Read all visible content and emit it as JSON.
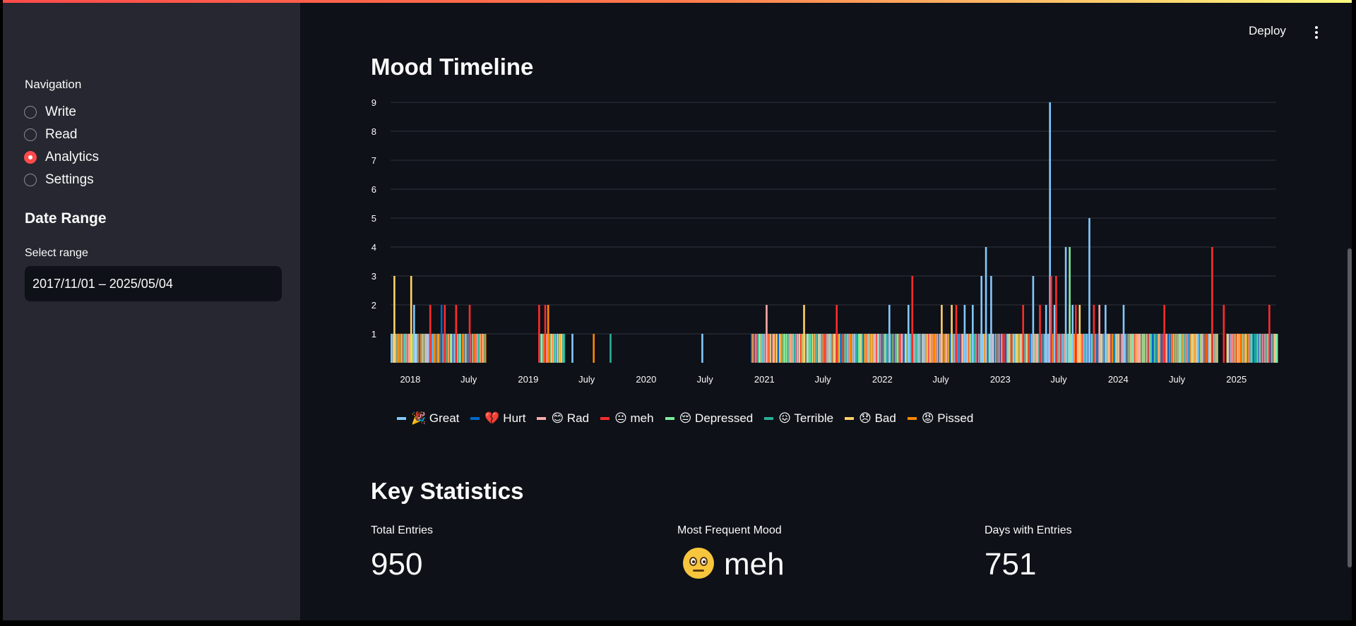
{
  "sidebar": {
    "nav_label": "Navigation",
    "nav_items": [
      {
        "label": "Write",
        "selected": false
      },
      {
        "label": "Read",
        "selected": false
      },
      {
        "label": "Analytics",
        "selected": true
      },
      {
        "label": "Settings",
        "selected": false
      }
    ],
    "date_heading": "Date Range",
    "select_label": "Select range",
    "date_value": "2017/11/01 – 2025/05/04"
  },
  "header": {
    "deploy_label": "Deploy",
    "menu_icon": "kebab-menu-icon"
  },
  "main": {
    "timeline_title": "Mood Timeline",
    "stats_title": "Key Statistics",
    "stats": [
      {
        "label": "Total Entries",
        "value": "950"
      },
      {
        "label": "Most Frequent Mood",
        "value": "meh",
        "emoji": "neutral-face-icon"
      },
      {
        "label": "Days with Entries",
        "value": "751"
      }
    ]
  },
  "chart_data": {
    "type": "bar",
    "title": "",
    "xlabel": "",
    "ylabel": "",
    "ylim": [
      0,
      9
    ],
    "yticks": [
      1,
      2,
      3,
      4,
      5,
      6,
      7,
      8,
      9
    ],
    "grid": true,
    "xlim": [
      "2017-11-01",
      "2025-05-04"
    ],
    "xtick_labels": [
      {
        "date": "2018-01-01",
        "label": "2018"
      },
      {
        "date": "2018-07-01",
        "label": "July"
      },
      {
        "date": "2019-01-01",
        "label": "2019"
      },
      {
        "date": "2019-07-01",
        "label": "July"
      },
      {
        "date": "2020-01-01",
        "label": "2020"
      },
      {
        "date": "2020-07-01",
        "label": "July"
      },
      {
        "date": "2021-01-01",
        "label": "2021"
      },
      {
        "date": "2021-07-01",
        "label": "July"
      },
      {
        "date": "2022-01-01",
        "label": "2022"
      },
      {
        "date": "2022-07-01",
        "label": "July"
      },
      {
        "date": "2023-01-01",
        "label": "2023"
      },
      {
        "date": "2023-07-01",
        "label": "July"
      },
      {
        "date": "2024-01-01",
        "label": "2024"
      },
      {
        "date": "2024-07-01",
        "label": "July"
      },
      {
        "date": "2025-01-01",
        "label": "2025"
      }
    ],
    "legend_position": "bottom-left",
    "series": [
      {
        "name": "🎉 Great",
        "color": "#83c9ff",
        "points": [
          [
            "2018-01-10",
            2
          ],
          [
            "2019-05-15",
            1
          ],
          [
            "2020-06-20",
            1
          ],
          [
            "2022-01-20",
            2
          ],
          [
            "2022-03-20",
            2
          ],
          [
            "2022-09-10",
            2
          ],
          [
            "2022-10-05",
            2
          ],
          [
            "2022-11-01",
            3
          ],
          [
            "2022-11-15",
            4
          ],
          [
            "2022-12-01",
            3
          ],
          [
            "2023-04-10",
            3
          ],
          [
            "2023-05-20",
            2
          ],
          [
            "2023-06-01",
            9
          ],
          [
            "2023-06-15",
            2
          ],
          [
            "2023-07-20",
            4
          ],
          [
            "2023-08-10",
            2
          ],
          [
            "2023-10-01",
            5
          ],
          [
            "2023-11-20",
            2
          ],
          [
            "2024-01-15",
            2
          ],
          [
            "2024-09-01",
            1
          ]
        ]
      },
      {
        "name": "💔 Hurt",
        "color": "#0068c9",
        "points": [
          [
            "2018-04-05",
            2
          ],
          [
            "2021-02-10",
            1
          ],
          [
            "2023-01-15",
            1
          ],
          [
            "2024-06-01",
            1
          ]
        ]
      },
      {
        "name": "😊 Rad",
        "color": "#ffabab",
        "points": [
          [
            "2018-02-20",
            1
          ],
          [
            "2021-01-05",
            2
          ],
          [
            "2022-07-15",
            1
          ],
          [
            "2023-04-20",
            1
          ],
          [
            "2023-08-01",
            2
          ],
          [
            "2023-11-01",
            2
          ],
          [
            "2024-03-01",
            1
          ]
        ]
      },
      {
        "name": "😐 meh",
        "color": "#ff2b2b",
        "points": [
          [
            "2018-03-01",
            2
          ],
          [
            "2018-04-15",
            2
          ],
          [
            "2018-05-20",
            2
          ],
          [
            "2018-07-01",
            2
          ],
          [
            "2019-02-01",
            2
          ],
          [
            "2019-02-20",
            2
          ],
          [
            "2021-08-10",
            2
          ],
          [
            "2022-04-01",
            3
          ],
          [
            "2022-08-15",
            2
          ],
          [
            "2023-03-10",
            2
          ],
          [
            "2023-05-01",
            2
          ],
          [
            "2023-06-05",
            3
          ],
          [
            "2023-06-20",
            3
          ],
          [
            "2023-08-20",
            2
          ],
          [
            "2023-10-15",
            2
          ],
          [
            "2024-05-20",
            2
          ],
          [
            "2024-10-15",
            4
          ],
          [
            "2024-11-20",
            2
          ],
          [
            "2025-04-10",
            2
          ]
        ]
      },
      {
        "name": "😔 Depressed",
        "color": "#7defa1",
        "points": [
          [
            "2021-03-01",
            1
          ],
          [
            "2023-08-01",
            4
          ],
          [
            "2024-02-10",
            1
          ]
        ]
      },
      {
        "name": "😖 Terrible",
        "color": "#29b09d",
        "points": [
          [
            "2019-09-10",
            1
          ],
          [
            "2021-04-01",
            1
          ],
          [
            "2022-12-20",
            1
          ],
          [
            "2025-03-01",
            1
          ]
        ]
      },
      {
        "name": "😞 Bad",
        "color": "#ffd16a",
        "points": [
          [
            "2017-11-10",
            3
          ],
          [
            "2018-01-01",
            3
          ],
          [
            "2021-05-01",
            2
          ],
          [
            "2022-07-01",
            2
          ],
          [
            "2022-08-01",
            2
          ],
          [
            "2023-09-01",
            2
          ],
          [
            "2024-12-01",
            1
          ]
        ]
      },
      {
        "name": "😡 Pissed",
        "color": "#ff8700",
        "points": [
          [
            "2017-11-20",
            1
          ],
          [
            "2018-03-15",
            1
          ],
          [
            "2018-06-10",
            1
          ],
          [
            "2019-03-01",
            2
          ],
          [
            "2019-07-20",
            1
          ],
          [
            "2021-02-20",
            1
          ],
          [
            "2022-06-10",
            1
          ],
          [
            "2025-01-20",
            1
          ]
        ]
      }
    ],
    "daily_entries_note_clusters": [
      {
        "start": "2017-11-01",
        "end": "2018-08-20"
      },
      {
        "start": "2019-02-01",
        "end": "2019-04-20"
      },
      {
        "start": "2020-11-20",
        "end": "2023-07-01"
      },
      {
        "start": "2023-07-01",
        "end": "2024-11-01"
      },
      {
        "start": "2024-12-01",
        "end": "2025-05-04"
      }
    ]
  }
}
